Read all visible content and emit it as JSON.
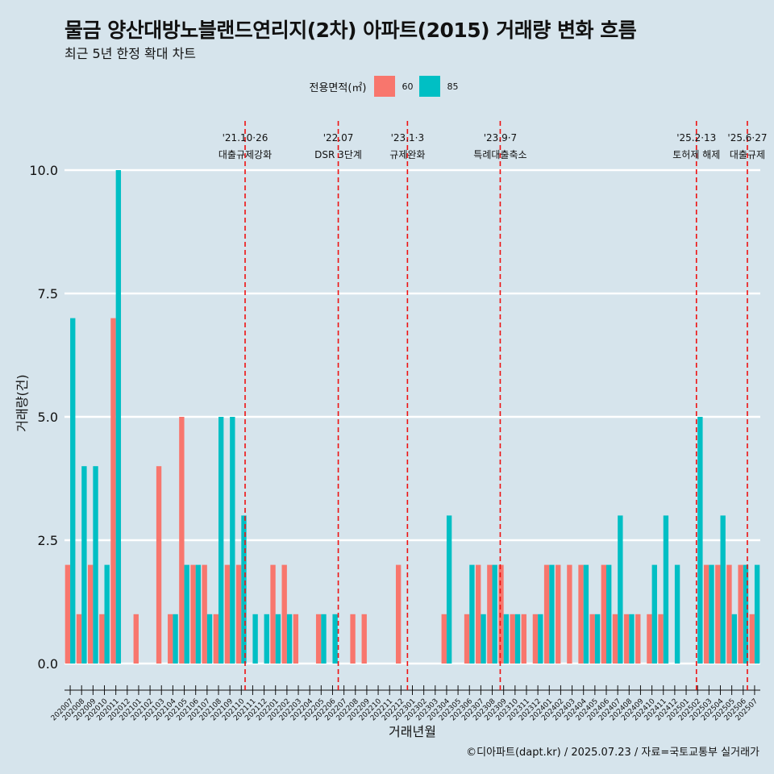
{
  "title": "물금 양산대방노블랜드연리지(2차) 아파트(2015) 거래량 변화 흐름",
  "subtitle": "최근 5년 한정 확대 차트",
  "legend": {
    "title": "전용면적(㎡)",
    "items": [
      {
        "label": "60",
        "color": "#F8766D"
      },
      {
        "label": "85",
        "color": "#00BFC4"
      }
    ]
  },
  "caption": "©디아파트(dapt.kr) / 2025.07.23 / 자료=국토교통부 실거래가",
  "chart_data": {
    "type": "bar",
    "xlabel": "거래년월",
    "ylabel": "거래량(건)",
    "ylim": [
      0,
      10
    ],
    "yticks": [
      "0.0",
      "2.5",
      "5.0",
      "7.5",
      "10.0"
    ],
    "grid": true,
    "legend_position": "top",
    "categories": [
      "202007",
      "202008",
      "202009",
      "202010",
      "202011",
      "202012",
      "202101",
      "202102",
      "202103",
      "202104",
      "202105",
      "202106",
      "202107",
      "202108",
      "202109",
      "202110",
      "202111",
      "202112",
      "202201",
      "202202",
      "202203",
      "202204",
      "202205",
      "202206",
      "202207",
      "202208",
      "202209",
      "202210",
      "202211",
      "202212",
      "202301",
      "202302",
      "202303",
      "202304",
      "202305",
      "202306",
      "202307",
      "202308",
      "202309",
      "202310",
      "202311",
      "202312",
      "202401",
      "202402",
      "202403",
      "202404",
      "202405",
      "202406",
      "202407",
      "202408",
      "202409",
      "202410",
      "202411",
      "202412",
      "202501",
      "202502",
      "202503",
      "202504",
      "202505",
      "202506",
      "202507"
    ],
    "series": [
      {
        "name": "60",
        "color": "#F8766D",
        "values": [
          2,
          1,
          2,
          1,
          7,
          0,
          1,
          0,
          4,
          1,
          5,
          2,
          2,
          1,
          2,
          2,
          0,
          0,
          2,
          2,
          1,
          0,
          1,
          0,
          0,
          1,
          1,
          0,
          0,
          2,
          0,
          0,
          0,
          1,
          0,
          1,
          2,
          2,
          2,
          1,
          1,
          1,
          2,
          2,
          2,
          2,
          1,
          2,
          1,
          1,
          1,
          1,
          1,
          0,
          0,
          0,
          2,
          2,
          2,
          2,
          1
        ]
      },
      {
        "name": "85",
        "color": "#00BFC4",
        "values": [
          7,
          4,
          4,
          2,
          10,
          0,
          0,
          0,
          0,
          1,
          2,
          2,
          1,
          5,
          5,
          3,
          1,
          1,
          1,
          1,
          0,
          0,
          1,
          1,
          0,
          0,
          0,
          0,
          0,
          0,
          0,
          0,
          0,
          3,
          0,
          2,
          1,
          2,
          1,
          1,
          0,
          1,
          2,
          0,
          0,
          2,
          1,
          2,
          3,
          1,
          0,
          2,
          3,
          2,
          0,
          5,
          2,
          3,
          1,
          2,
          2
        ]
      }
    ],
    "events": [
      {
        "date": "2021-10-26",
        "line1": "'21.10·26",
        "line2": "대출규제강화"
      },
      {
        "date": "2022-07",
        "line1": "'22.07",
        "line2": "DSR 3단계"
      },
      {
        "date": "2023-01-03",
        "line1": "'23.1·3",
        "line2": "규제완화"
      },
      {
        "date": "2023-09-07",
        "line1": "'23.9·7",
        "line2": "특례대출축소"
      },
      {
        "date": "2025-02-13",
        "line1": "'25.2·13",
        "line2": "토허제 해제"
      },
      {
        "date": "2025-06-27",
        "line1": "'25.6·27",
        "line2": "대출규제"
      }
    ]
  }
}
